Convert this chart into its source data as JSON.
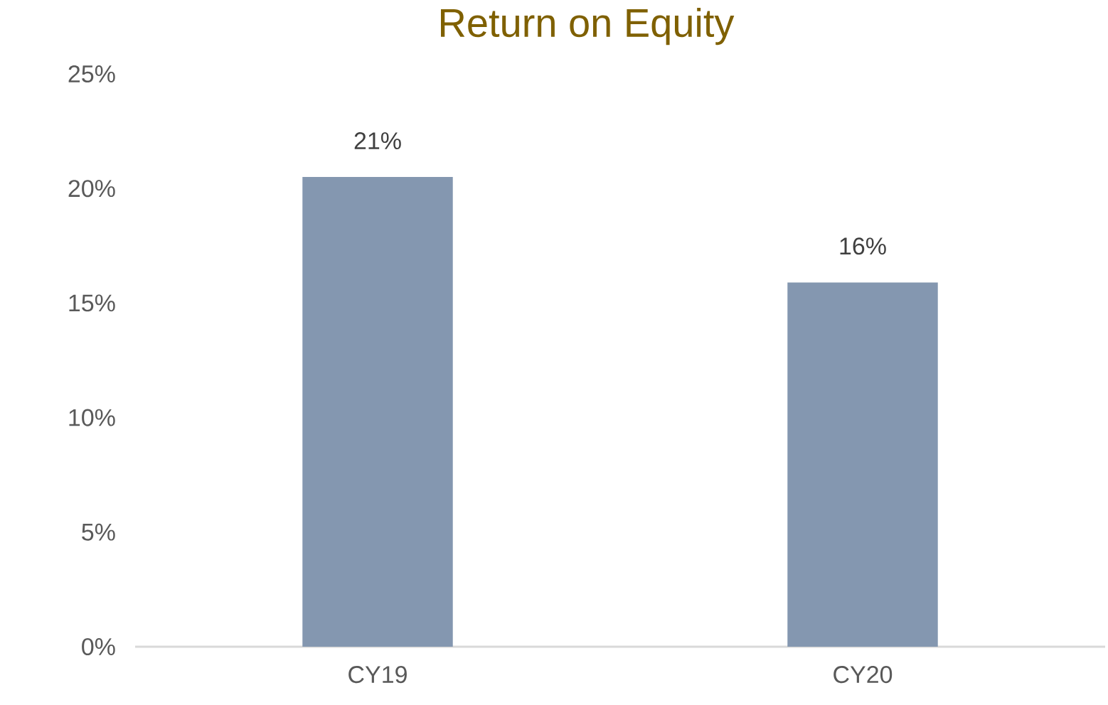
{
  "chart_data": {
    "type": "bar",
    "title": "Return on Equity",
    "categories": [
      "CY19",
      "CY20"
    ],
    "values": [
      20.5,
      15.9
    ],
    "value_labels": [
      "21%",
      "16%"
    ],
    "color": "#8497b0",
    "ylim": [
      0,
      25
    ],
    "yticks": [
      {
        "value": 0,
        "label": "0%"
      },
      {
        "value": 5,
        "label": "5%"
      },
      {
        "value": 10,
        "label": "10%"
      },
      {
        "value": 15,
        "label": "15%"
      },
      {
        "value": 20,
        "label": "20%"
      },
      {
        "value": 25,
        "label": "25%"
      }
    ]
  }
}
